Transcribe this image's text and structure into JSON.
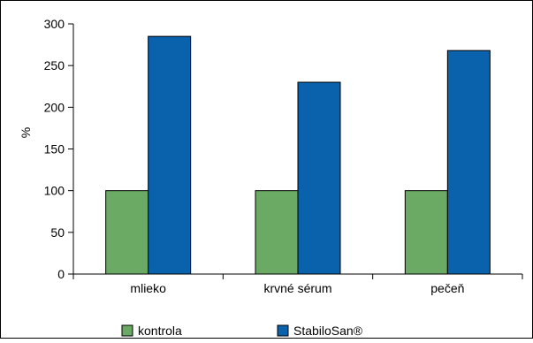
{
  "chart_data": {
    "type": "bar",
    "categories": [
      "mlieko",
      "krvné sérum",
      "pečeň"
    ],
    "series": [
      {
        "name": "kontrola",
        "values": [
          100,
          100,
          100
        ],
        "color": "#6aaa64"
      },
      {
        "name": "StabiloSan®",
        "values": [
          285,
          230,
          268
        ],
        "color": "#0a61ac"
      }
    ],
    "ylabel": "%",
    "ylim": [
      0,
      300
    ],
    "yticks": [
      0,
      50,
      100,
      150,
      200,
      250,
      300
    ],
    "grid": false,
    "legend": "bottom"
  }
}
